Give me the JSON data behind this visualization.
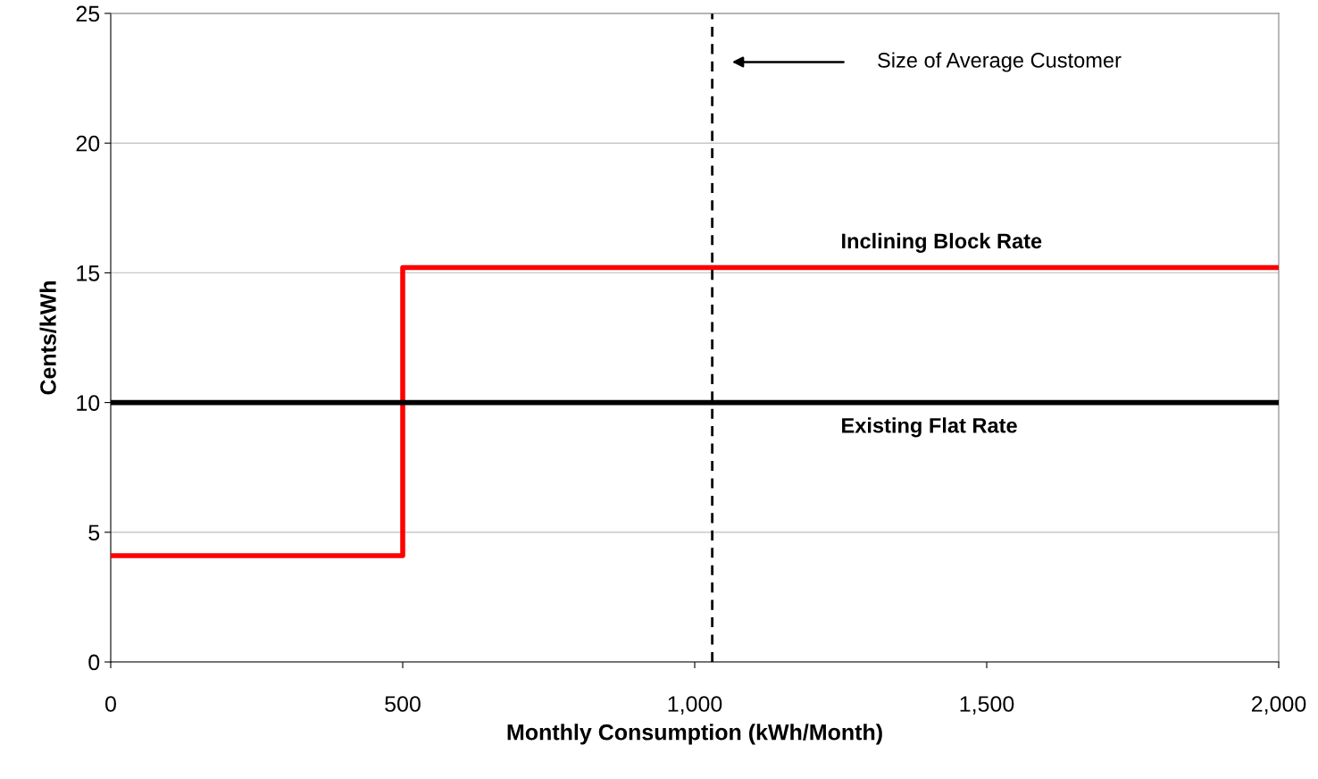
{
  "chart_data": {
    "type": "step",
    "xlabel": "Monthly Consumption (kWh/Month)",
    "ylabel": "Cents/kWh",
    "series": [
      {
        "name": "Inclining Block Rate",
        "color": "#ff0000",
        "x": [
          0,
          500,
          2000
        ],
        "values": [
          4.1,
          15.2,
          15.2
        ]
      },
      {
        "name": "Existing Flat Rate",
        "color": "#000000",
        "x": [
          0,
          2000
        ],
        "values": [
          10,
          10
        ]
      }
    ],
    "xlim": [
      0,
      2000
    ],
    "xticks": [
      0,
      500,
      {
        "value": 1000,
        "label": "1,000"
      },
      {
        "value": 1500,
        "label": "1,500"
      },
      {
        "value": 2000,
        "label": "2,000"
      }
    ],
    "ylim": [
      0,
      25
    ],
    "yticks": [
      0,
      5,
      10,
      15,
      20,
      25
    ],
    "grid": "y",
    "legend": false,
    "marker": "none",
    "line_style": "solid",
    "ref_lines": [
      {
        "axis": "x",
        "value": 1030,
        "color": "#000000",
        "line_style": "dashed"
      }
    ],
    "annotations": [
      "Size of Average Customer"
    ]
  }
}
